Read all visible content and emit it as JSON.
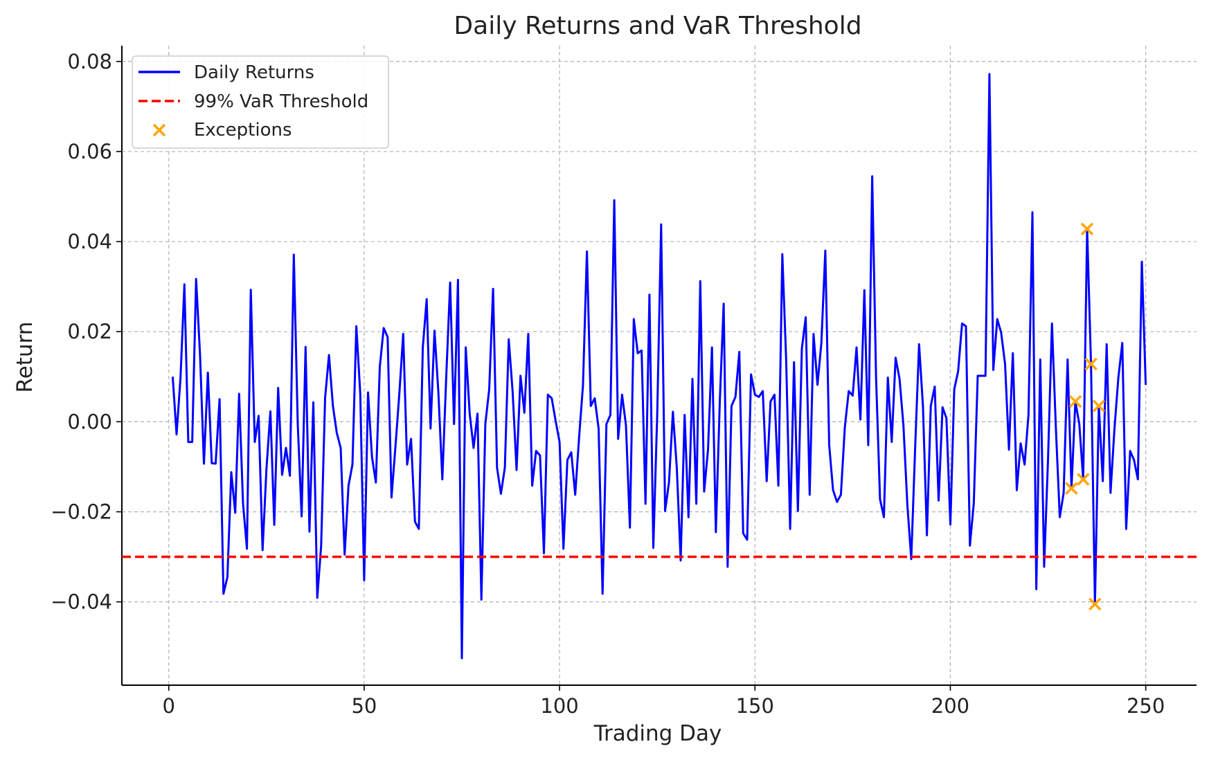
{
  "chart_data": {
    "type": "line",
    "title": "Daily Returns and VaR Threshold",
    "xlabel": "Trading Day",
    "ylabel": "Return",
    "xlim": [
      -12,
      263
    ],
    "ylim": [
      -0.0585,
      0.0835
    ],
    "grid": true,
    "legend_position": "top-left",
    "x_ticks": [
      0,
      50,
      100,
      150,
      200,
      250
    ],
    "x_tick_labels": [
      "0",
      "50",
      "100",
      "150",
      "200",
      "250"
    ],
    "y_ticks": [
      -0.04,
      -0.02,
      0.0,
      0.02,
      0.04,
      0.06,
      0.08
    ],
    "y_tick_labels": [
      "−0.04",
      "−0.02",
      "0.00",
      "0.02",
      "0.04",
      "0.06",
      "0.08"
    ],
    "colors": {
      "returns": "#0000ff",
      "threshold": "#ff0000",
      "exceptions": "#ffa500",
      "grid": "#b0b0b0",
      "axes": "#000000"
    },
    "series": [
      {
        "name": "Daily Returns",
        "style": "line",
        "x": [
          1,
          2,
          3,
          4,
          5,
          6,
          7,
          8,
          9,
          10,
          11,
          12,
          13,
          14,
          15,
          16,
          17,
          18,
          19,
          20,
          21,
          22,
          23,
          24,
          25,
          26,
          27,
          28,
          29,
          30,
          31,
          32,
          33,
          34,
          35,
          36,
          37,
          38,
          39,
          40,
          41,
          42,
          43,
          44,
          45,
          46,
          47,
          48,
          49,
          50,
          51,
          52,
          53,
          54,
          55,
          56,
          57,
          58,
          59,
          60,
          61,
          62,
          63,
          64,
          65,
          66,
          67,
          68,
          69,
          70,
          71,
          72,
          73,
          74,
          75,
          76,
          77,
          78,
          79,
          80,
          81,
          82,
          83,
          84,
          85,
          86,
          87,
          88,
          89,
          90,
          91,
          92,
          93,
          94,
          95,
          96,
          97,
          98,
          99,
          100,
          101,
          102,
          103,
          104,
          105,
          106,
          107,
          108,
          109,
          110,
          111,
          112,
          113,
          114,
          115,
          116,
          117,
          118,
          119,
          120,
          121,
          122,
          123,
          124,
          125,
          126,
          127,
          128,
          129,
          130,
          131,
          132,
          133,
          134,
          135,
          136,
          137,
          138,
          139,
          140,
          141,
          142,
          143,
          144,
          145,
          146,
          147,
          148,
          149,
          150,
          151,
          152,
          153,
          154,
          155,
          156,
          157,
          158,
          159,
          160,
          161,
          162,
          163,
          164,
          165,
          166,
          167,
          168,
          169,
          170,
          171,
          172,
          173,
          174,
          175,
          176,
          177,
          178,
          179,
          180,
          181,
          182,
          183,
          184,
          185,
          186,
          187,
          188,
          189,
          190,
          191,
          192,
          193,
          194,
          195,
          196,
          197,
          198,
          199,
          200,
          201,
          202,
          203,
          204,
          205,
          206,
          207,
          208,
          209,
          210,
          211,
          212,
          213,
          214,
          215,
          216,
          217,
          218,
          219,
          220,
          221,
          222,
          223,
          224,
          225,
          226,
          227,
          228,
          229,
          230,
          231,
          232,
          233,
          234,
          235,
          236,
          237,
          238,
          239,
          240,
          241,
          242,
          243,
          244,
          245,
          246,
          247,
          248,
          249,
          250
        ],
        "y": [
          0.01,
          -0.0028,
          0.0098,
          0.0305,
          -0.0045,
          -0.0045,
          0.0317,
          0.0148,
          -0.0093,
          0.0109,
          -0.0092,
          -0.0093,
          0.005,
          -0.0382,
          -0.0345,
          -0.0112,
          -0.0202,
          0.0062,
          -0.0182,
          -0.0282,
          0.0293,
          -0.0045,
          0.0013,
          -0.0285,
          -0.0105,
          0.0023,
          -0.0229,
          0.0075,
          -0.0118,
          -0.0058,
          -0.012,
          0.0371,
          -0.0005,
          -0.021,
          0.0166,
          -0.0244,
          0.0043,
          -0.0391,
          -0.0275,
          0.0053,
          0.0148,
          0.0035,
          -0.0025,
          -0.0058,
          -0.0295,
          -0.0142,
          -0.0095,
          0.0212,
          0.0062,
          -0.0352,
          0.0065,
          -0.0078,
          -0.0135,
          0.0122,
          0.0208,
          0.0188,
          -0.0168,
          -0.0055,
          0.0062,
          0.0195,
          -0.0095,
          -0.0038,
          -0.0222,
          -0.0238,
          0.0165,
          0.0272,
          -0.0015,
          0.0202,
          0.0065,
          -0.0128,
          0.0098,
          0.0309,
          -0.0005,
          0.0315,
          -0.0525,
          0.0165,
          0.0018,
          -0.0058,
          0.0018,
          -0.0395,
          -0.0005,
          0.0072,
          0.0295,
          -0.0102,
          -0.016,
          -0.0102,
          0.0183,
          0.0065,
          -0.0107,
          0.0102,
          0.002,
          0.0195,
          -0.0142,
          -0.0065,
          -0.0075,
          -0.0292,
          0.006,
          0.0052,
          0.0002,
          -0.0045,
          -0.0282,
          -0.0085,
          -0.0068,
          -0.0162,
          -0.0035,
          0.008,
          0.0378,
          0.0035,
          0.0052,
          -0.0015,
          -0.0382,
          -0.0005,
          0.0015,
          0.0492,
          -0.0038,
          0.006,
          -0.0008,
          -0.0235,
          0.0228,
          0.0152,
          0.0158,
          -0.0182,
          0.0282,
          -0.028,
          0.002,
          0.0438,
          -0.0198,
          -0.0135,
          0.0022,
          -0.0102,
          -0.0308,
          0.0015,
          -0.0212,
          0.0095,
          -0.0182,
          0.0312,
          -0.0155,
          -0.0062,
          0.0165,
          -0.0245,
          0.0045,
          0.0262,
          -0.0322,
          0.0035,
          0.0055,
          0.0155,
          -0.0248,
          -0.0262,
          0.0105,
          0.006,
          0.0055,
          0.0068,
          -0.0132,
          0.0045,
          0.006,
          -0.0142,
          0.0372,
          0.0135,
          -0.0238,
          0.0132,
          -0.0198,
          0.0162,
          0.0232,
          -0.0162,
          0.0195,
          0.0082,
          0.0175,
          0.038,
          -0.0052,
          -0.0152,
          -0.0178,
          -0.0162,
          -0.0012,
          0.0068,
          0.0058,
          0.0165,
          0.0005,
          0.0292,
          -0.0052,
          0.0545,
          0.0098,
          -0.0172,
          -0.0212,
          0.0098,
          -0.0045,
          0.0142,
          0.0095,
          -0.0008,
          -0.0185,
          -0.0305,
          -0.0055,
          0.0172,
          0.0035,
          -0.0252,
          0.0035,
          0.0078,
          -0.0175,
          0.0032,
          0.0008,
          -0.0228,
          0.0072,
          0.0112,
          0.0218,
          0.0212,
          -0.0275,
          -0.0182,
          0.0102,
          0.0102,
          0.0102,
          0.0772,
          0.0115,
          0.0228,
          0.0198,
          0.0128,
          -0.0062,
          0.0152,
          -0.0152,
          -0.0048,
          -0.0095,
          0.0015,
          0.0465,
          -0.0372,
          0.0138,
          -0.0322,
          -0.0085,
          0.0218,
          -0.0012,
          -0.0212,
          -0.0158,
          0.0138,
          -0.0148,
          0.0045,
          -0.0005,
          -0.0128,
          0.0428,
          0.0128,
          -0.0405,
          0.0035,
          -0.0132,
          0.0172,
          -0.0158,
          -0.0015,
          0.0098,
          0.0175,
          -0.0238,
          -0.0065,
          -0.0085,
          -0.0128,
          0.0355,
          0.0082
        ]
      },
      {
        "name": "99% VaR Threshold",
        "style": "dashed-hline",
        "y": -0.03
      },
      {
        "name": "Exceptions",
        "style": "scatter-x",
        "x": [
          231,
          232,
          234,
          235,
          236,
          237,
          238
        ],
        "y": [
          -0.0148,
          0.0045,
          -0.0128,
          0.0428,
          0.0128,
          -0.0405,
          0.0035
        ]
      }
    ]
  }
}
